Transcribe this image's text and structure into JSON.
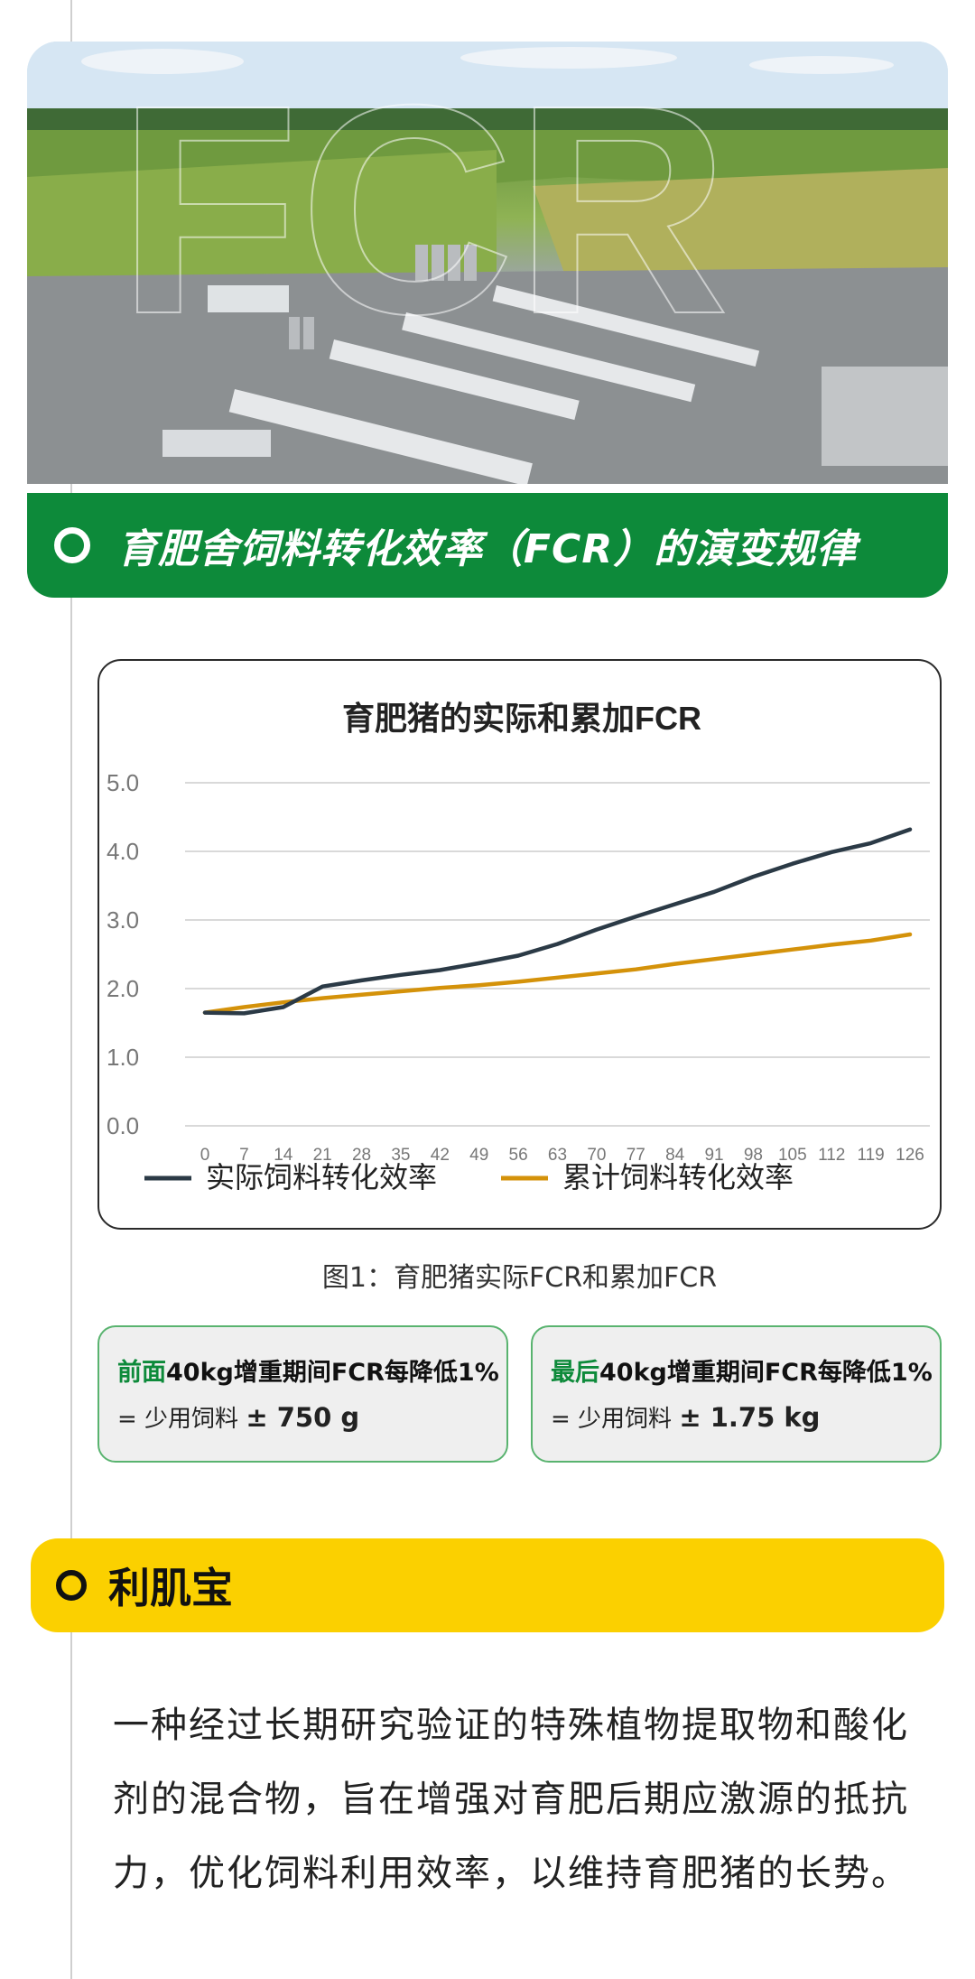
{
  "section_fcr": {
    "title": "育肥舍饲料转化效率（FCR）的演变规律"
  },
  "hero": {
    "watermark": "FCR"
  },
  "chart_data": {
    "type": "line",
    "title": "育肥猪的实际和累加FCR",
    "categories": [
      "0",
      "7",
      "14",
      "21",
      "28",
      "35",
      "42",
      "49",
      "56",
      "63",
      "70",
      "77",
      "84",
      "91",
      "98",
      "105",
      "112",
      "119",
      "126"
    ],
    "ylim": [
      0,
      5
    ],
    "y_ticks": [
      "0.0",
      "1.0",
      "2.0",
      "3.0",
      "4.0",
      "5.0"
    ],
    "grid": true,
    "legend_position": "bottom",
    "series": [
      {
        "name": "实际饲料转化效率",
        "color": "#2b3a46",
        "values": [
          1.65,
          1.64,
          1.73,
          2.03,
          2.12,
          2.2,
          2.27,
          2.37,
          2.48,
          2.65,
          2.86,
          3.05,
          3.23,
          3.41,
          3.63,
          3.82,
          3.99,
          4.12,
          4.32
        ]
      },
      {
        "name": "累计饲料转化效率",
        "color": "#d4920a",
        "values": [
          1.65,
          1.73,
          1.8,
          1.86,
          1.91,
          1.96,
          2.01,
          2.05,
          2.1,
          2.16,
          2.22,
          2.28,
          2.36,
          2.43,
          2.5,
          2.57,
          2.64,
          2.7,
          2.79
        ]
      }
    ]
  },
  "caption": "图1：育肥猪实际FCR和累加FCR",
  "info_boxes": [
    {
      "highlight": "前面",
      "rest": "40kg增重期间FCR每降低1%",
      "prefix": "= 少用饲料 ",
      "value": "± 750 g"
    },
    {
      "highlight": "最后",
      "rest": "40kg增重期间FCR每降低1%",
      "prefix": "= 少用饲料 ",
      "value": "± 1.75 kg"
    }
  ],
  "section_product": {
    "title": "利肌宝",
    "description": "一种经过长期研究验证的特殊植物提取物和酸化剂的混合物，旨在增强对育肥后期应激源的抵抗力，优化饲料利用效率，以维持育肥猪的长势。"
  }
}
